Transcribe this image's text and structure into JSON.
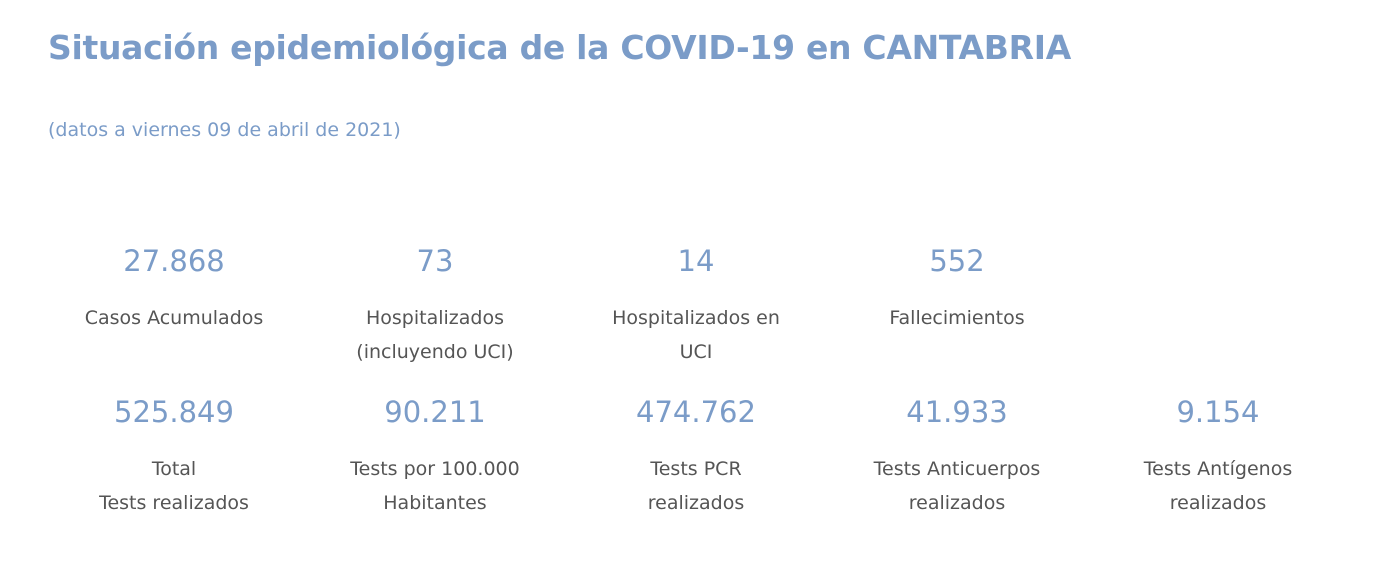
{
  "header": {
    "title": "Situación epidemiológica de la COVID-19 en CANTABRIA",
    "subtitle": "(datos a viernes 09 de abril de 2021)"
  },
  "stats_row1": [
    {
      "value": "27.868",
      "label": [
        "Casos Acumulados"
      ]
    },
    {
      "value": "73",
      "label": [
        "Hospitalizados",
        "(incluyendo UCI)"
      ]
    },
    {
      "value": "14",
      "label": [
        "Hospitalizados en",
        "UCI"
      ]
    },
    {
      "value": "552",
      "label": [
        "Fallecimientos"
      ]
    }
  ],
  "stats_row2": [
    {
      "value": "525.849",
      "label": [
        "Total",
        "Tests realizados"
      ]
    },
    {
      "value": "90.211",
      "label": [
        "Tests por 100.000",
        "Habitantes"
      ]
    },
    {
      "value": "474.762",
      "label": [
        "Tests PCR",
        "realizados"
      ]
    },
    {
      "value": "41.933",
      "label": [
        "Tests Anticuerpos",
        "realizados"
      ]
    },
    {
      "value": "9.154",
      "label": [
        "Tests Antígenos",
        "realizados"
      ]
    }
  ],
  "colors": {
    "accent": "#7b9cc8",
    "text": "#555555",
    "background": "#ffffff"
  }
}
